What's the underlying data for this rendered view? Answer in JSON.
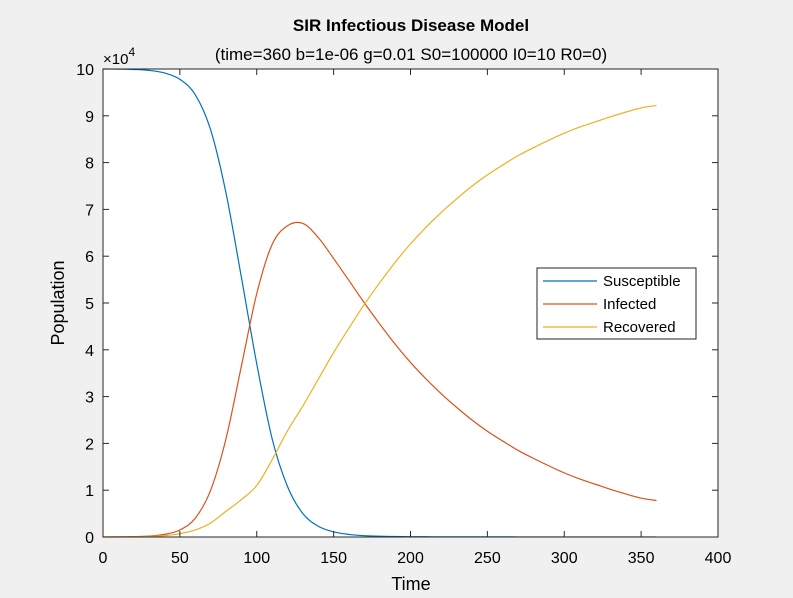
{
  "colors": {
    "figure_background": "#f0f0f0",
    "axes_background": "#ffffff",
    "axis_color": "#262626",
    "susceptible": "#0072bd",
    "infected": "#d95319",
    "recovered": "#edb120"
  },
  "chart_data": {
    "type": "line",
    "title": "SIR Infectious Disease Model",
    "subtitle": "(time=360 b=1e-06 g=0.01 S0=100000 I0=10 R0=0)",
    "xlabel": "Time",
    "ylabel": "Population",
    "y_exponent_label": "×10",
    "y_exponent_power": "4",
    "xlim": [
      0,
      400
    ],
    "ylim": [
      0,
      100000
    ],
    "xticks": [
      0,
      50,
      100,
      150,
      200,
      250,
      300,
      350,
      400
    ],
    "yticks": [
      0,
      10000,
      20000,
      30000,
      40000,
      50000,
      60000,
      70000,
      80000,
      90000,
      100000
    ],
    "ytick_labels": [
      "0",
      "1",
      "2",
      "3",
      "4",
      "5",
      "6",
      "7",
      "8",
      "9",
      "10"
    ],
    "grid": false,
    "legend_position": "right",
    "x": [
      0,
      10,
      20,
      30,
      40,
      50,
      60,
      70,
      80,
      90,
      100,
      110,
      120,
      130,
      140,
      150,
      160,
      170,
      180,
      190,
      200,
      210,
      220,
      230,
      240,
      250,
      260,
      270,
      280,
      290,
      300,
      310,
      320,
      330,
      340,
      350,
      360
    ],
    "series": [
      {
        "name": "Susceptible",
        "values": [
          100000,
          99970,
          99900,
          99700,
          99150,
          97800,
          94500,
          87000,
          73500,
          55500,
          37000,
          21000,
          10800,
          5000,
          2300,
          1100,
          550,
          280,
          160,
          110,
          70,
          50,
          40,
          30,
          25,
          22,
          20,
          18,
          17,
          16,
          15,
          15,
          14,
          14,
          14,
          13,
          13
        ]
      },
      {
        "name": "Infected",
        "values": [
          10,
          27,
          74,
          200,
          560,
          1500,
          4000,
          10000,
          21000,
          36500,
          52000,
          62500,
          66500,
          67000,
          64000,
          59500,
          54800,
          50000,
          45500,
          41200,
          37300,
          33800,
          30600,
          27700,
          25000,
          22600,
          20500,
          18500,
          16800,
          15200,
          13700,
          12400,
          11300,
          10200,
          9200,
          8300,
          7800
        ]
      },
      {
        "name": "Recovered",
        "values": [
          0,
          3,
          26,
          100,
          290,
          700,
          1500,
          3000,
          5500,
          8000,
          11000,
          16500,
          22700,
          28000,
          33700,
          39400,
          44650,
          49720,
          54340,
          58690,
          62630,
          66150,
          69360,
          72270,
          74975,
          77378,
          79480,
          81482,
          83183,
          84784,
          86285,
          87585,
          88686,
          89786,
          90786,
          91687,
          92187
        ]
      }
    ]
  }
}
